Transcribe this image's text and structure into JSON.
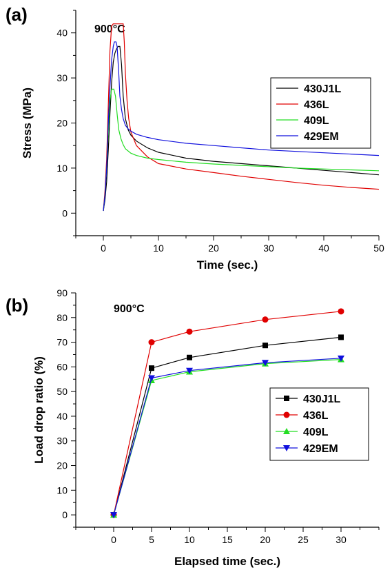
{
  "chart_data": [
    {
      "panel_label": "(a)",
      "type": "line",
      "annotation": "900°C",
      "xlabel": "Time (sec.)",
      "ylabel": "Stress (MPa)",
      "xlim": [
        -5,
        50
      ],
      "ylim": [
        -5,
        45
      ],
      "xticks": [
        0,
        10,
        20,
        30,
        40,
        50
      ],
      "yticks": [
        0,
        10,
        20,
        30,
        40
      ],
      "legend": "right",
      "series": [
        {
          "name": "430J1L",
          "color": "#000000",
          "x": [
            0,
            0.3,
            0.6,
            0.9,
            1.2,
            1.5,
            1.8,
            2.1,
            2.4,
            2.7,
            3.0,
            3.3,
            3.6,
            4.0,
            4.5,
            5,
            6,
            8,
            10,
            15,
            20,
            25,
            30,
            35,
            40,
            45,
            50
          ],
          "y": [
            0.5,
            3,
            7,
            14,
            22,
            29,
            33.5,
            35.5,
            36.5,
            37,
            37,
            33,
            26,
            21,
            18.5,
            17.3,
            16,
            14.5,
            13.5,
            12.2,
            11.5,
            11,
            10.5,
            10,
            9.5,
            9,
            8.5
          ]
        },
        {
          "name": "436L",
          "color": "#e00000",
          "x": [
            0,
            0.3,
            0.6,
            0.9,
            1.2,
            1.5,
            1.8,
            2.1,
            3.6,
            3.8,
            4.0,
            4.3,
            4.6,
            5,
            6,
            8,
            10,
            15,
            20,
            25,
            30,
            35,
            40,
            45,
            50
          ],
          "y": [
            0.5,
            5,
            12,
            24,
            36,
            41.5,
            42,
            42,
            42,
            38,
            31,
            25,
            21,
            18,
            15,
            12.5,
            11,
            9.8,
            9,
            8.2,
            7.5,
            6.8,
            6.2,
            5.7,
            5.3
          ]
        },
        {
          "name": "409L",
          "color": "#22dd22",
          "x": [
            0,
            0.3,
            0.6,
            0.9,
            1.2,
            1.5,
            1.9,
            2.2,
            2.5,
            2.8,
            3.2,
            3.6,
            4.0,
            5,
            6,
            8,
            10,
            15,
            20,
            25,
            30,
            35,
            40,
            45,
            50
          ],
          "y": [
            0.5,
            4,
            10,
            18,
            25,
            27.5,
            27.5,
            26,
            22,
            18.5,
            16.5,
            15.2,
            14.3,
            13.3,
            12.8,
            12.2,
            11.9,
            11.3,
            10.9,
            10.6,
            10.3,
            10,
            9.8,
            9.6,
            9.4
          ]
        },
        {
          "name": "429EM",
          "color": "#1010dd",
          "x": [
            0,
            0.3,
            0.6,
            0.9,
            1.2,
            1.5,
            1.8,
            2.0,
            2.3,
            2.5,
            2.8,
            3.0,
            3.3,
            3.6,
            4.0,
            4.5,
            5,
            6,
            8,
            10,
            15,
            20,
            25,
            30,
            35,
            40,
            45,
            50
          ],
          "y": [
            0.5,
            4,
            10,
            20,
            28,
            34,
            37,
            38,
            38,
            37,
            31,
            26,
            23,
            21,
            19.5,
            18.7,
            18.2,
            17.5,
            16.8,
            16.3,
            15.5,
            15,
            14.5,
            14,
            13.7,
            13.4,
            13.1,
            12.8
          ]
        }
      ]
    },
    {
      "panel_label": "(b)",
      "type": "line",
      "annotation": "900°C",
      "xlabel": "Elapsed time (sec.)",
      "ylabel": "Load drop ratio (%)",
      "xlim": [
        -5,
        35
      ],
      "ylim": [
        -5,
        90
      ],
      "xticks": [
        0,
        5,
        10,
        15,
        20,
        25,
        30
      ],
      "yticks": [
        0,
        10,
        20,
        30,
        40,
        50,
        60,
        70,
        80,
        90
      ],
      "legend": "bottom-right",
      "x": [
        0,
        5,
        10,
        20,
        30
      ],
      "series": [
        {
          "name": "430J1L",
          "color": "#000000",
          "marker": "square",
          "values": [
            0,
            59.5,
            63.8,
            68.7,
            72
          ]
        },
        {
          "name": "436L",
          "color": "#e00000",
          "marker": "circle",
          "values": [
            0,
            70,
            74.3,
            79.2,
            82.5
          ]
        },
        {
          "name": "409L",
          "color": "#22dd22",
          "marker": "triangle-up",
          "values": [
            0,
            54.5,
            58,
            61.3,
            63
          ]
        },
        {
          "name": "429EM",
          "color": "#1010dd",
          "marker": "triangle-down",
          "values": [
            0,
            55.5,
            58.5,
            61.7,
            63.5
          ]
        }
      ]
    }
  ]
}
